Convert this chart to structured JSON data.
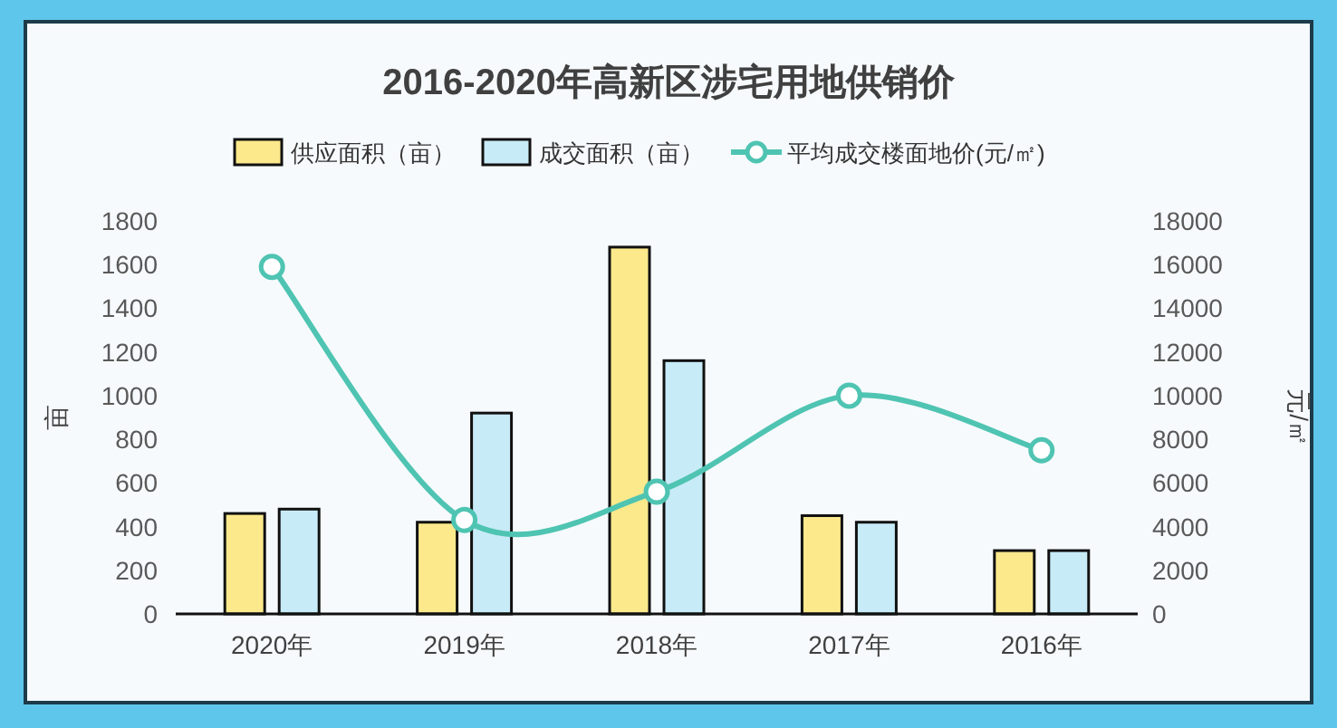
{
  "chart_data": {
    "type": "bar",
    "title": "2016-2020年高新区涉宅用地供销价",
    "categories": [
      "2020年",
      "2019年",
      "2018年",
      "2017年",
      "2016年"
    ],
    "ylabel": "亩",
    "y2label": "元/㎡",
    "ylim": [
      0,
      1800
    ],
    "yticks": [
      0,
      200,
      400,
      600,
      800,
      1000,
      1200,
      1400,
      1600,
      1800
    ],
    "y2lim": [
      0,
      18000
    ],
    "y2ticks": [
      0,
      2000,
      4000,
      6000,
      8000,
      10000,
      12000,
      14000,
      16000,
      18000
    ],
    "legend": "top",
    "grid": false,
    "marker": "circle",
    "series": [
      {
        "name": "供应面积（亩）",
        "color": "#fbe98c",
        "values": [
          460,
          420,
          1680,
          450,
          290
        ]
      },
      {
        "name": "成交面积（亩）",
        "color": "#c8ebf8",
        "values": [
          480,
          920,
          1160,
          420,
          290
        ]
      },
      {
        "name": "平均成交楼面地价(元/㎡)",
        "type": "line",
        "axis": "y2",
        "color": "#4fc4b2",
        "values": [
          15900,
          4300,
          5600,
          10000,
          7500
        ]
      }
    ]
  }
}
